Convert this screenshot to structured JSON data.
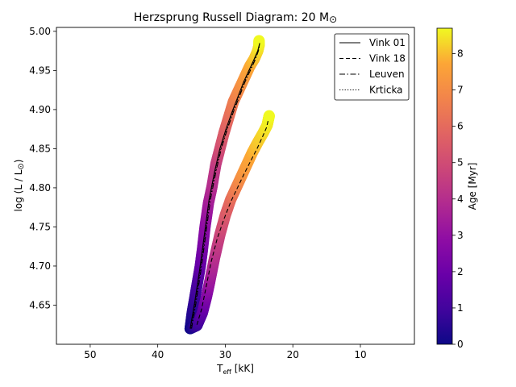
{
  "chart_data": {
    "type": "line",
    "title": "Herzsprung Russell Diagram: 20 M",
    "title_symbol": "⊙",
    "xlabel": "T",
    "xlabel_sub": "eff",
    "xlabel_unit": " [kK]",
    "ylabel": "log (L / L",
    "ylabel_symbol": "⊙",
    "ylabel_end": ")",
    "xlim": [
      55,
      2
    ],
    "ylim": [
      4.6,
      5.005
    ],
    "xticks": [
      50,
      40,
      30,
      20,
      10
    ],
    "yticks": [
      4.65,
      4.7,
      4.75,
      4.8,
      4.85,
      4.9,
      4.95,
      5.0
    ],
    "ytick_labels": [
      "4.65",
      "4.70",
      "4.75",
      "4.80",
      "4.85",
      "4.90",
      "4.95",
      "5.00"
    ],
    "grid": false,
    "legend_position": "top-right",
    "colorbar": {
      "label": "Age [Myr]",
      "min": 0,
      "max": 8.7,
      "ticks": [
        0,
        1,
        2,
        3,
        4,
        5,
        6,
        7,
        8
      ],
      "colormap": "plasma"
    },
    "tracks": [
      {
        "name": "left",
        "teff": [
          35.2,
          34.9,
          34.5,
          34.1,
          33.7,
          33.4,
          33.0,
          32.5,
          32.0,
          31.4,
          30.8,
          30.2,
          29.5,
          28.8,
          28.0,
          27.2,
          26.4,
          25.7,
          25.2,
          25.0,
          25.0
        ],
        "logL": [
          4.62,
          4.64,
          4.66,
          4.68,
          4.7,
          4.72,
          4.75,
          4.78,
          4.8,
          4.83,
          4.85,
          4.87,
          4.89,
          4.91,
          4.925,
          4.94,
          4.955,
          4.965,
          4.975,
          4.982,
          4.988
        ],
        "age": [
          0.0,
          0.4,
          0.8,
          1.2,
          1.7,
          2.2,
          2.8,
          3.4,
          3.9,
          4.4,
          5.0,
          5.5,
          6.0,
          6.5,
          6.9,
          7.3,
          7.7,
          8.0,
          8.3,
          8.5,
          8.7
        ]
      },
      {
        "name": "right",
        "teff": [
          35.2,
          34.2,
          33.4,
          32.8,
          32.3,
          31.6,
          30.8,
          30.0,
          29.2,
          28.4,
          27.6,
          26.8,
          26.0,
          25.2,
          24.4,
          23.8,
          23.6,
          23.5
        ],
        "logL": [
          4.62,
          4.624,
          4.64,
          4.66,
          4.68,
          4.71,
          4.74,
          4.765,
          4.785,
          4.8,
          4.815,
          4.83,
          4.845,
          4.858,
          4.87,
          4.88,
          4.888,
          4.892
        ],
        "age": [
          0.0,
          0.8,
          1.6,
          2.4,
          3.2,
          4.0,
          4.7,
          5.4,
          6.0,
          6.6,
          7.1,
          7.5,
          7.8,
          8.1,
          8.3,
          8.5,
          8.6,
          8.7
        ]
      }
    ],
    "series": [
      {
        "name": "Vink 01",
        "dash": "solid",
        "x": [
          35.2,
          34.5,
          33.8,
          33.1,
          32.4,
          31.6,
          30.8,
          29.9,
          29.0,
          28.1,
          27.3,
          26.5,
          25.8,
          25.2,
          24.9
        ],
        "y": [
          4.62,
          4.655,
          4.695,
          4.74,
          4.785,
          4.82,
          4.85,
          4.875,
          4.897,
          4.917,
          4.935,
          4.95,
          4.963,
          4.975,
          4.985
        ]
      },
      {
        "name": "Vink 18",
        "dash": "dashed",
        "x": [
          34.2,
          33.5,
          32.8,
          32.1,
          31.2,
          30.2,
          29.2,
          28.2,
          27.2,
          26.2,
          25.3,
          24.5,
          23.9,
          23.6
        ],
        "y": [
          4.625,
          4.645,
          4.675,
          4.705,
          4.735,
          4.76,
          4.782,
          4.8,
          4.818,
          4.835,
          4.85,
          4.865,
          4.877,
          4.888
        ]
      },
      {
        "name": "Leuven",
        "dash": "dashdot",
        "x": [
          35.0,
          34.3,
          33.6,
          32.9,
          32.2,
          31.4,
          30.6,
          29.7,
          28.8,
          27.9,
          27.1,
          26.3,
          25.6,
          25.1,
          24.9
        ],
        "y": [
          4.62,
          4.655,
          4.695,
          4.74,
          4.785,
          4.82,
          4.85,
          4.875,
          4.897,
          4.917,
          4.935,
          4.95,
          4.963,
          4.975,
          4.983
        ]
      },
      {
        "name": "Krticka",
        "dash": "dotted",
        "x": [
          35.1,
          34.4,
          33.7,
          33.0,
          32.3,
          31.5,
          30.7,
          29.8,
          28.9,
          28.0,
          27.2,
          26.4,
          25.7,
          25.15,
          24.9
        ],
        "y": [
          4.62,
          4.655,
          4.695,
          4.74,
          4.785,
          4.82,
          4.85,
          4.875,
          4.897,
          4.917,
          4.935,
          4.95,
          4.963,
          4.975,
          4.984
        ]
      }
    ]
  }
}
